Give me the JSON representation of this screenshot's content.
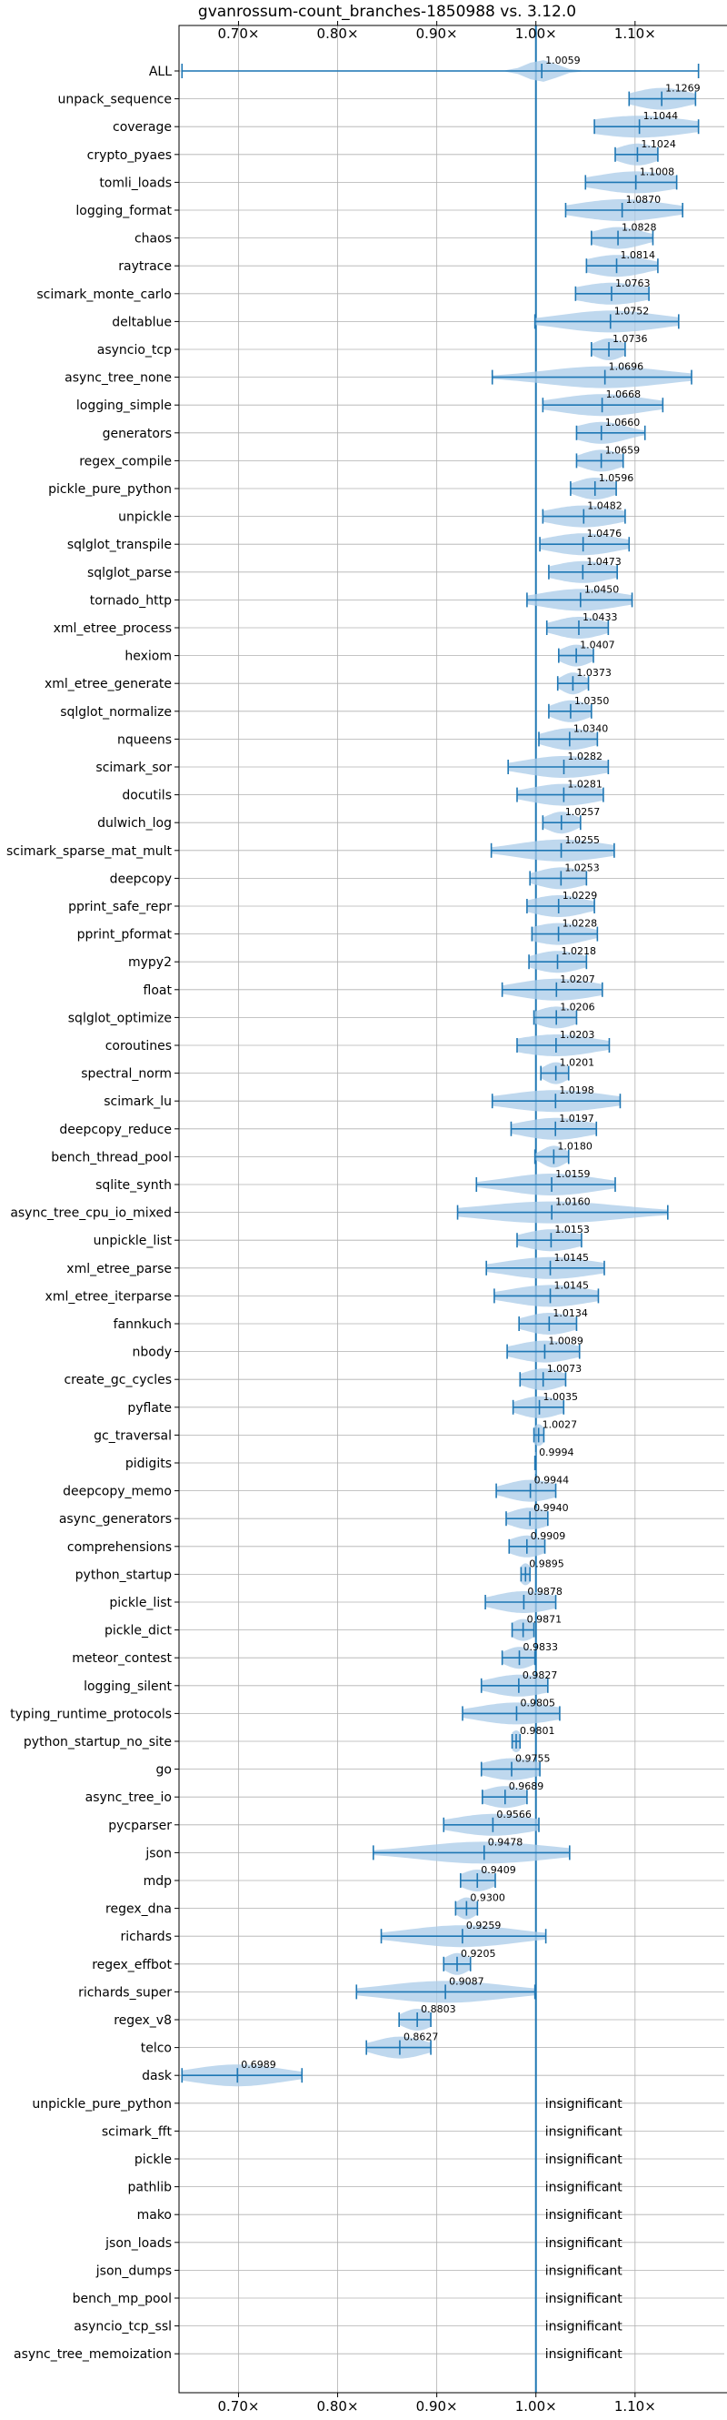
{
  "chart_data": {
    "type": "violin",
    "title": "gvanrossum-count_branches-1850988 vs. 3.12.0",
    "xlim": [
      0.64,
      1.19
    ],
    "xticks": [
      0.7,
      0.8,
      0.9,
      1.0,
      1.1
    ],
    "xtick_labels": [
      "0.70×",
      "0.80×",
      "0.90×",
      "1.00×",
      "1.10×"
    ],
    "reference_line": 1.0,
    "grid": true,
    "colors": {
      "primary": "#1f77b4",
      "violin": "#a9cbe8",
      "grid": "#b0b0b0"
    },
    "insignificant_text": "insignificant",
    "benchmarks": [
      {
        "name": "ALL",
        "label": "1.0059",
        "mean": 1.0059,
        "min": 0.643,
        "max": 1.164,
        "spread": 0.015
      },
      {
        "name": "unpack_sequence",
        "label": "1.1269",
        "mean": 1.1269,
        "min": 1.094,
        "max": 1.161,
        "spread": 0.028
      },
      {
        "name": "coverage",
        "label": "1.1044",
        "mean": 1.1044,
        "min": 1.059,
        "max": 1.164,
        "spread": 0.05
      },
      {
        "name": "crypto_pyaes",
        "label": "1.1024",
        "mean": 1.1024,
        "min": 1.08,
        "max": 1.123,
        "spread": 0.02
      },
      {
        "name": "tomli_loads",
        "label": "1.1008",
        "mean": 1.1008,
        "min": 1.05,
        "max": 1.142,
        "spread": 0.04
      },
      {
        "name": "logging_format",
        "label": "1.0870",
        "mean": 1.087,
        "min": 1.03,
        "max": 1.148,
        "spread": 0.045
      },
      {
        "name": "chaos",
        "label": "1.0828",
        "mean": 1.0828,
        "min": 1.056,
        "max": 1.118,
        "spread": 0.025
      },
      {
        "name": "raytrace",
        "label": "1.0814",
        "mean": 1.0814,
        "min": 1.051,
        "max": 1.123,
        "spread": 0.03
      },
      {
        "name": "scimark_monte_carlo",
        "label": "1.0763",
        "mean": 1.0763,
        "min": 1.04,
        "max": 1.114,
        "spread": 0.035
      },
      {
        "name": "deltablue",
        "label": "1.0752",
        "mean": 1.0752,
        "min": 0.999,
        "max": 1.144,
        "spread": 0.05
      },
      {
        "name": "asyncio_tcp",
        "label": "1.0736",
        "mean": 1.0736,
        "min": 1.056,
        "max": 1.09,
        "spread": 0.015
      },
      {
        "name": "async_tree_none",
        "label": "1.0696",
        "mean": 1.0696,
        "min": 0.956,
        "max": 1.157,
        "spread": 0.06
      },
      {
        "name": "logging_simple",
        "label": "1.0668",
        "mean": 1.0668,
        "min": 1.007,
        "max": 1.128,
        "spread": 0.045
      },
      {
        "name": "generators",
        "label": "1.0660",
        "mean": 1.066,
        "min": 1.041,
        "max": 1.11,
        "spread": 0.025
      },
      {
        "name": "regex_compile",
        "label": "1.0659",
        "mean": 1.0659,
        "min": 1.041,
        "max": 1.088,
        "spread": 0.02
      },
      {
        "name": "pickle_pure_python",
        "label": "1.0596",
        "mean": 1.0596,
        "min": 1.035,
        "max": 1.081,
        "spread": 0.02
      },
      {
        "name": "unpickle",
        "label": "1.0482",
        "mean": 1.0482,
        "min": 1.007,
        "max": 1.09,
        "spread": 0.035
      },
      {
        "name": "sqlglot_transpile",
        "label": "1.0476",
        "mean": 1.0476,
        "min": 1.004,
        "max": 1.094,
        "spread": 0.035
      },
      {
        "name": "sqlglot_parse",
        "label": "1.0473",
        "mean": 1.0473,
        "min": 1.013,
        "max": 1.082,
        "spread": 0.03
      },
      {
        "name": "tornado_http",
        "label": "1.0450",
        "mean": 1.045,
        "min": 0.991,
        "max": 1.097,
        "spread": 0.04
      },
      {
        "name": "xml_etree_process",
        "label": "1.0433",
        "mean": 1.0433,
        "min": 1.011,
        "max": 1.073,
        "spread": 0.025
      },
      {
        "name": "hexiom",
        "label": "1.0407",
        "mean": 1.0407,
        "min": 1.023,
        "max": 1.058,
        "spread": 0.015
      },
      {
        "name": "xml_etree_generate",
        "label": "1.0373",
        "mean": 1.0373,
        "min": 1.022,
        "max": 1.053,
        "spread": 0.012
      },
      {
        "name": "sqlglot_normalize",
        "label": "1.0350",
        "mean": 1.035,
        "min": 1.013,
        "max": 1.056,
        "spread": 0.018
      },
      {
        "name": "nqueens",
        "label": "1.0340",
        "mean": 1.034,
        "min": 1.003,
        "max": 1.062,
        "spread": 0.025
      },
      {
        "name": "scimark_sor",
        "label": "1.0282",
        "mean": 1.0282,
        "min": 0.972,
        "max": 1.073,
        "spread": 0.04
      },
      {
        "name": "docutils",
        "label": "1.0281",
        "mean": 1.0281,
        "min": 0.981,
        "max": 1.068,
        "spread": 0.035
      },
      {
        "name": "dulwich_log",
        "label": "1.0257",
        "mean": 1.0257,
        "min": 1.007,
        "max": 1.045,
        "spread": 0.015
      },
      {
        "name": "scimark_sparse_mat_mult",
        "label": "1.0255",
        "mean": 1.0255,
        "min": 0.955,
        "max": 1.079,
        "spread": 0.045
      },
      {
        "name": "deepcopy",
        "label": "1.0253",
        "mean": 1.0253,
        "min": 0.994,
        "max": 1.051,
        "spread": 0.025
      },
      {
        "name": "pprint_safe_repr",
        "label": "1.0229",
        "mean": 1.0229,
        "min": 0.991,
        "max": 1.059,
        "spread": 0.028
      },
      {
        "name": "pprint_pformat",
        "label": "1.0228",
        "mean": 1.0228,
        "min": 0.996,
        "max": 1.062,
        "spread": 0.028
      },
      {
        "name": "mypy2",
        "label": "1.0218",
        "mean": 1.0218,
        "min": 0.993,
        "max": 1.051,
        "spread": 0.025
      },
      {
        "name": "float",
        "label": "1.0207",
        "mean": 1.0207,
        "min": 0.966,
        "max": 1.067,
        "spread": 0.04
      },
      {
        "name": "sqlglot_optimize",
        "label": "1.0206",
        "mean": 1.0206,
        "min": 0.998,
        "max": 1.041,
        "spread": 0.02
      },
      {
        "name": "coroutines",
        "label": "1.0203",
        "mean": 1.0203,
        "min": 0.981,
        "max": 1.074,
        "spread": 0.04
      },
      {
        "name": "spectral_norm",
        "label": "1.0201",
        "mean": 1.0201,
        "min": 1.005,
        "max": 1.033,
        "spread": 0.012
      },
      {
        "name": "scimark_lu",
        "label": "1.0198",
        "mean": 1.0198,
        "min": 0.956,
        "max": 1.085,
        "spread": 0.05
      },
      {
        "name": "deepcopy_reduce",
        "label": "1.0197",
        "mean": 1.0197,
        "min": 0.975,
        "max": 1.061,
        "spread": 0.035
      },
      {
        "name": "bench_thread_pool",
        "label": "1.0180",
        "mean": 1.018,
        "min": 0.999,
        "max": 1.033,
        "spread": 0.012
      },
      {
        "name": "sqlite_synth",
        "label": "1.0159",
        "mean": 1.0159,
        "min": 0.94,
        "max": 1.08,
        "spread": 0.045
      },
      {
        "name": "async_tree_cpu_io_mixed",
        "label": "1.0160",
        "mean": 1.016,
        "min": 0.921,
        "max": 1.133,
        "spread": 0.07
      },
      {
        "name": "unpickle_list",
        "label": "1.0153",
        "mean": 1.0153,
        "min": 0.981,
        "max": 1.046,
        "spread": 0.028
      },
      {
        "name": "xml_etree_parse",
        "label": "1.0145",
        "mean": 1.0145,
        "min": 0.95,
        "max": 1.069,
        "spread": 0.045
      },
      {
        "name": "xml_etree_iterparse",
        "label": "1.0145",
        "mean": 1.0145,
        "min": 0.958,
        "max": 1.063,
        "spread": 0.04
      },
      {
        "name": "fannkuch",
        "label": "1.0134",
        "mean": 1.0134,
        "min": 0.983,
        "max": 1.041,
        "spread": 0.025
      },
      {
        "name": "nbody",
        "label": "1.0089",
        "mean": 1.0089,
        "min": 0.971,
        "max": 1.044,
        "spread": 0.03
      },
      {
        "name": "create_gc_cycles",
        "label": "1.0073",
        "mean": 1.0073,
        "min": 0.984,
        "max": 1.03,
        "spread": 0.02
      },
      {
        "name": "pyflate",
        "label": "1.0035",
        "mean": 1.0035,
        "min": 0.977,
        "max": 1.028,
        "spread": 0.022
      },
      {
        "name": "gc_traversal",
        "label": "1.0027",
        "mean": 1.0027,
        "min": 0.998,
        "max": 1.008,
        "spread": 0.006
      },
      {
        "name": "pidigits",
        "label": "0.9994",
        "mean": 0.9994,
        "min": 0.999,
        "max": 0.9998,
        "spread": 0.002
      },
      {
        "name": "deepcopy_memo",
        "label": "0.9944",
        "mean": 0.9944,
        "min": 0.96,
        "max": 1.02,
        "spread": 0.025
      },
      {
        "name": "async_generators",
        "label": "0.9940",
        "mean": 0.994,
        "min": 0.97,
        "max": 1.012,
        "spread": 0.02
      },
      {
        "name": "comprehensions",
        "label": "0.9909",
        "mean": 0.9909,
        "min": 0.973,
        "max": 1.009,
        "spread": 0.018
      },
      {
        "name": "python_startup",
        "label": "0.9895",
        "mean": 0.9895,
        "min": 0.985,
        "max": 0.994,
        "spread": 0.006
      },
      {
        "name": "pickle_list",
        "label": "0.9878",
        "mean": 0.9878,
        "min": 0.949,
        "max": 1.02,
        "spread": 0.03
      },
      {
        "name": "pickle_dict",
        "label": "0.9871",
        "mean": 0.9871,
        "min": 0.976,
        "max": 0.998,
        "spread": 0.012
      },
      {
        "name": "meteor_contest",
        "label": "0.9833",
        "mean": 0.9833,
        "min": 0.966,
        "max": 0.999,
        "spread": 0.015
      },
      {
        "name": "logging_silent",
        "label": "0.9827",
        "mean": 0.9827,
        "min": 0.945,
        "max": 1.012,
        "spread": 0.03
      },
      {
        "name": "typing_runtime_protocols",
        "label": "0.9805",
        "mean": 0.9805,
        "min": 0.926,
        "max": 1.024,
        "spread": 0.04
      },
      {
        "name": "python_startup_no_site",
        "label": "0.9801",
        "mean": 0.9801,
        "min": 0.976,
        "max": 0.984,
        "spread": 0.006
      },
      {
        "name": "go",
        "label": "0.9755",
        "mean": 0.9755,
        "min": 0.945,
        "max": 1.004,
        "spread": 0.028
      },
      {
        "name": "async_tree_io",
        "label": "0.9689",
        "mean": 0.9689,
        "min": 0.946,
        "max": 0.991,
        "spread": 0.022
      },
      {
        "name": "pycparser",
        "label": "0.9566",
        "mean": 0.9566,
        "min": 0.907,
        "max": 1.003,
        "spread": 0.04
      },
      {
        "name": "json",
        "label": "0.9478",
        "mean": 0.9478,
        "min": 0.836,
        "max": 1.034,
        "spread": 0.065
      },
      {
        "name": "mdp",
        "label": "0.9409",
        "mean": 0.9409,
        "min": 0.924,
        "max": 0.959,
        "spread": 0.016
      },
      {
        "name": "regex_dna",
        "label": "0.9300",
        "mean": 0.93,
        "min": 0.919,
        "max": 0.941,
        "spread": 0.01
      },
      {
        "name": "richards",
        "label": "0.9259",
        "mean": 0.9259,
        "min": 0.844,
        "max": 1.01,
        "spread": 0.055
      },
      {
        "name": "regex_effbot",
        "label": "0.9205",
        "mean": 0.9205,
        "min": 0.907,
        "max": 0.934,
        "spread": 0.012
      },
      {
        "name": "richards_super",
        "label": "0.9087",
        "mean": 0.9087,
        "min": 0.819,
        "max": 0.999,
        "spread": 0.06
      },
      {
        "name": "regex_v8",
        "label": "0.8803",
        "mean": 0.8803,
        "min": 0.862,
        "max": 0.894,
        "spread": 0.015
      },
      {
        "name": "telco",
        "label": "0.8627",
        "mean": 0.8627,
        "min": 0.829,
        "max": 0.894,
        "spread": 0.025
      },
      {
        "name": "dask",
        "label": "0.6989",
        "mean": 0.6989,
        "min": 0.643,
        "max": 0.764,
        "spread": 0.045
      }
    ],
    "insignificant": [
      "unpickle_pure_python",
      "scimark_fft",
      "pickle",
      "pathlib",
      "mako",
      "json_loads",
      "json_dumps",
      "bench_mp_pool",
      "asyncio_tcp_ssl",
      "async_tree_memoization"
    ]
  }
}
